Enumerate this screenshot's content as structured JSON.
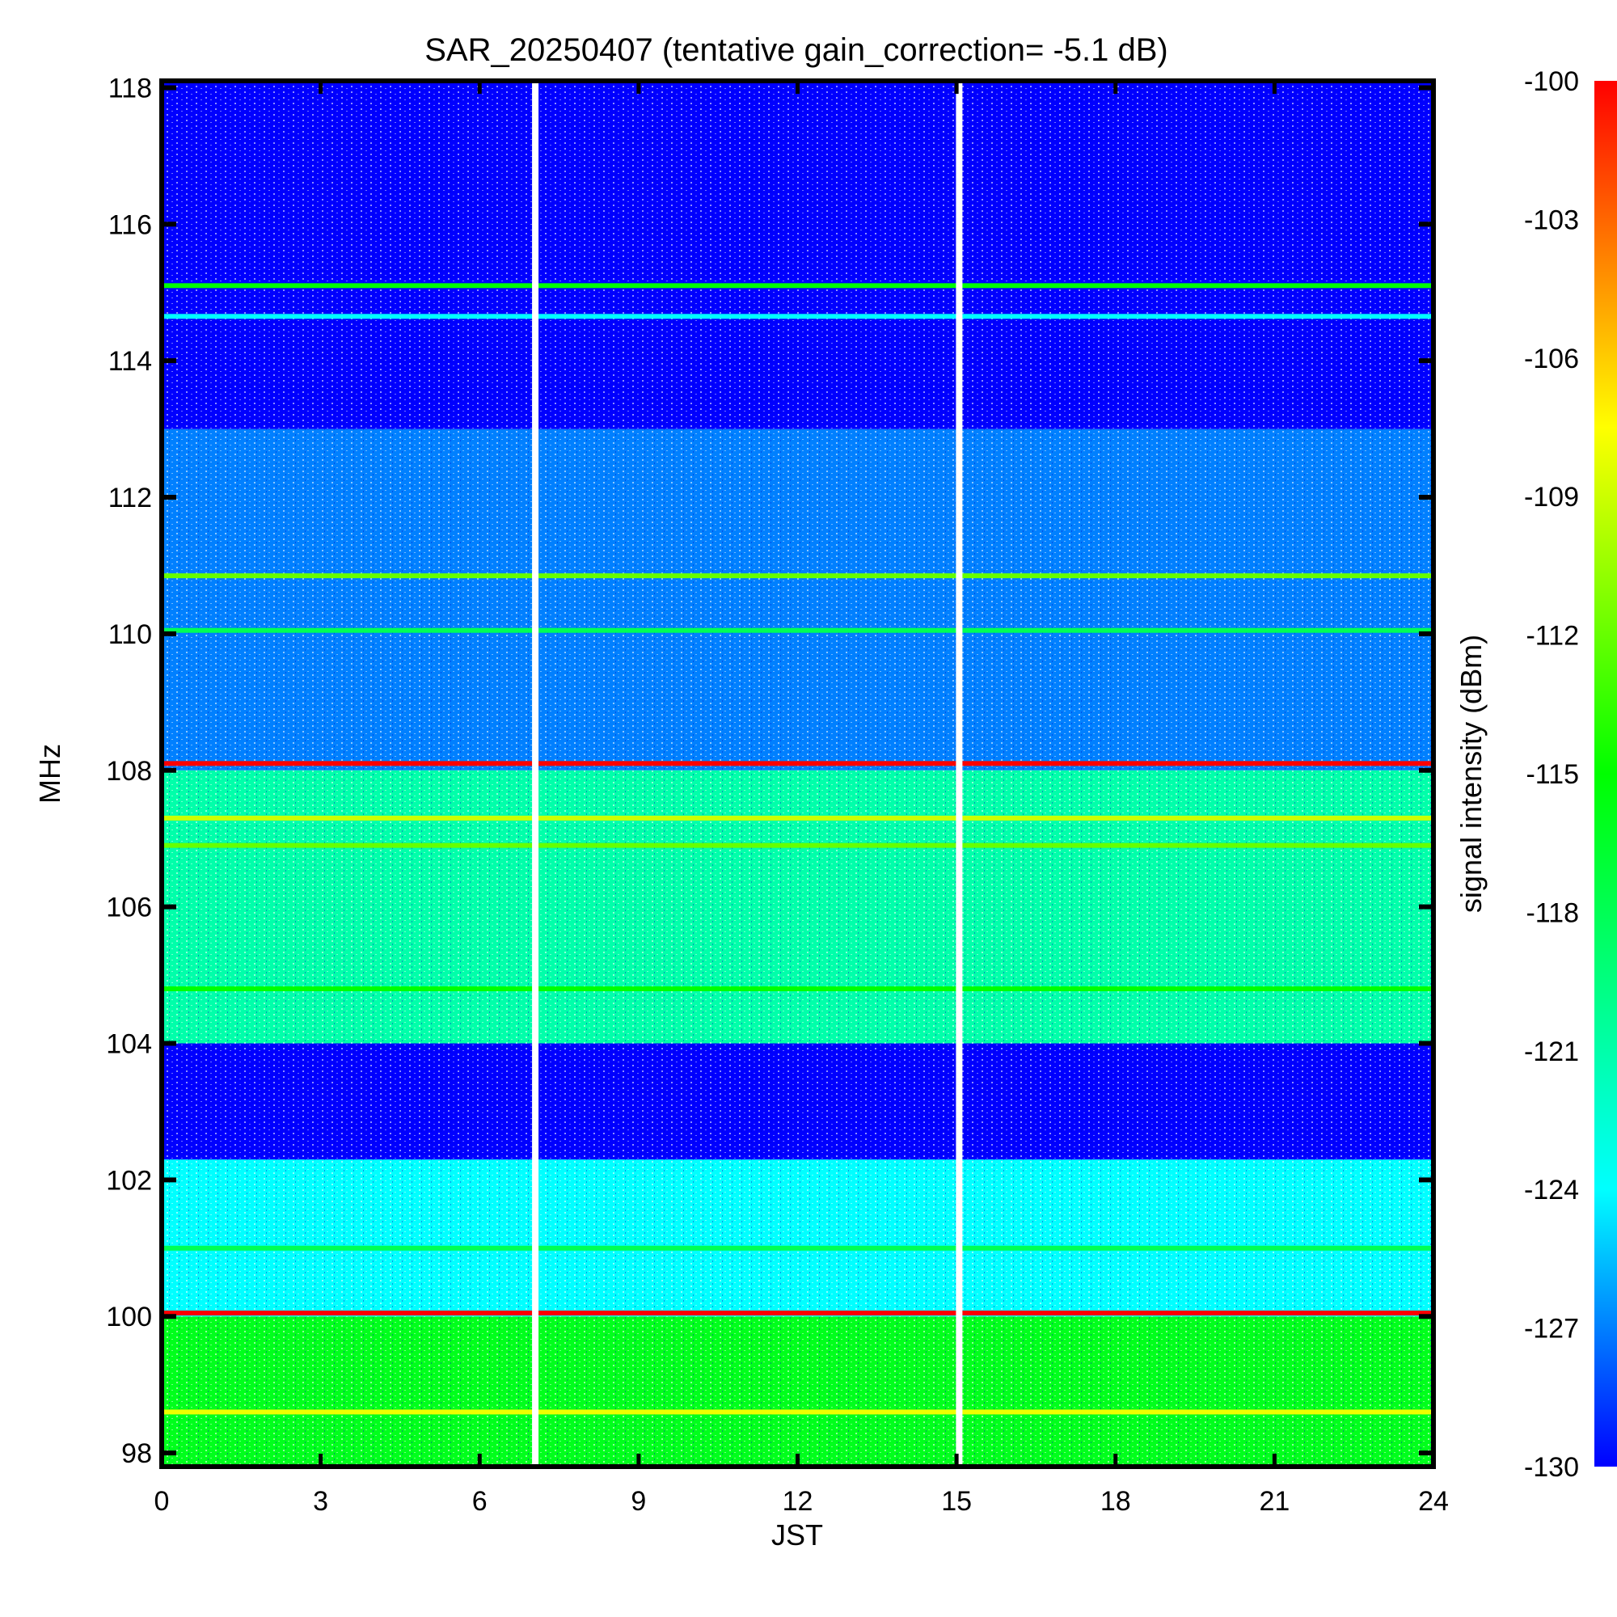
{
  "chart_data": {
    "type": "heatmap",
    "title": "SAR_20250407 (tentative gain_correction= -5.1 dB)",
    "xlabel": "JST",
    "ylabel": "MHz",
    "colorbar_label": "signal intensity (dBm)",
    "xlim": [
      0,
      24
    ],
    "ylim": [
      97.8,
      118.1
    ],
    "x_ticks": [
      "0",
      "3",
      "6",
      "9",
      "12",
      "15",
      "18",
      "21",
      "24"
    ],
    "x_tick_values": [
      0,
      3,
      6,
      9,
      12,
      15,
      18,
      21,
      24
    ],
    "y_ticks": [
      "98",
      "100",
      "102",
      "104",
      "106",
      "108",
      "110",
      "112",
      "114",
      "116",
      "118"
    ],
    "y_tick_values": [
      98,
      100,
      102,
      104,
      106,
      108,
      110,
      112,
      114,
      116,
      118
    ],
    "colorbar_ticks": [
      "-100",
      "-103",
      "-106",
      "-109",
      "-112",
      "-115",
      "-118",
      "-121",
      "-124",
      "-127",
      "-130"
    ],
    "colorbar_range": [
      -130,
      -100
    ],
    "colormap": [
      "#0000ff",
      "#00ffff",
      "#00ff00",
      "#ffff00",
      "#ff0000"
    ],
    "colormap_stops": [
      -130,
      -124,
      -115,
      -107.5,
      -100
    ],
    "data_gaps_jst": [
      7.05,
      15.05
    ],
    "bands": [
      {
        "name": "98-100 MHz",
        "from_mhz": 97.8,
        "to_mhz": 100.0,
        "typical_dbm": -116
      },
      {
        "name": "100-102.3 MHz",
        "from_mhz": 100.0,
        "to_mhz": 102.3,
        "typical_dbm": -124
      },
      {
        "name": "102.3-104 MHz",
        "from_mhz": 102.3,
        "to_mhz": 104.0,
        "typical_dbm": -130
      },
      {
        "name": "104-108 MHz",
        "from_mhz": 104.0,
        "to_mhz": 108.0,
        "typical_dbm": -121
      },
      {
        "name": "108-113 MHz",
        "from_mhz": 108.0,
        "to_mhz": 113.0,
        "typical_dbm": -127
      },
      {
        "name": "113-118 MHz",
        "from_mhz": 113.0,
        "to_mhz": 118.1,
        "typical_dbm": -130
      }
    ],
    "strong_lines_mhz": [
      {
        "mhz": 100.05,
        "dbm": -100
      },
      {
        "mhz": 108.1,
        "dbm": -100
      },
      {
        "mhz": 98.6,
        "dbm": -108
      },
      {
        "mhz": 110.85,
        "dbm": -112
      },
      {
        "mhz": 115.1,
        "dbm": -115
      },
      {
        "mhz": 114.65,
        "dbm": -124
      },
      {
        "mhz": 110.05,
        "dbm": -118
      },
      {
        "mhz": 101.0,
        "dbm": -118
      },
      {
        "mhz": 104.8,
        "dbm": -115
      },
      {
        "mhz": 107.3,
        "dbm": -109
      },
      {
        "mhz": 106.9,
        "dbm": -112
      }
    ]
  }
}
